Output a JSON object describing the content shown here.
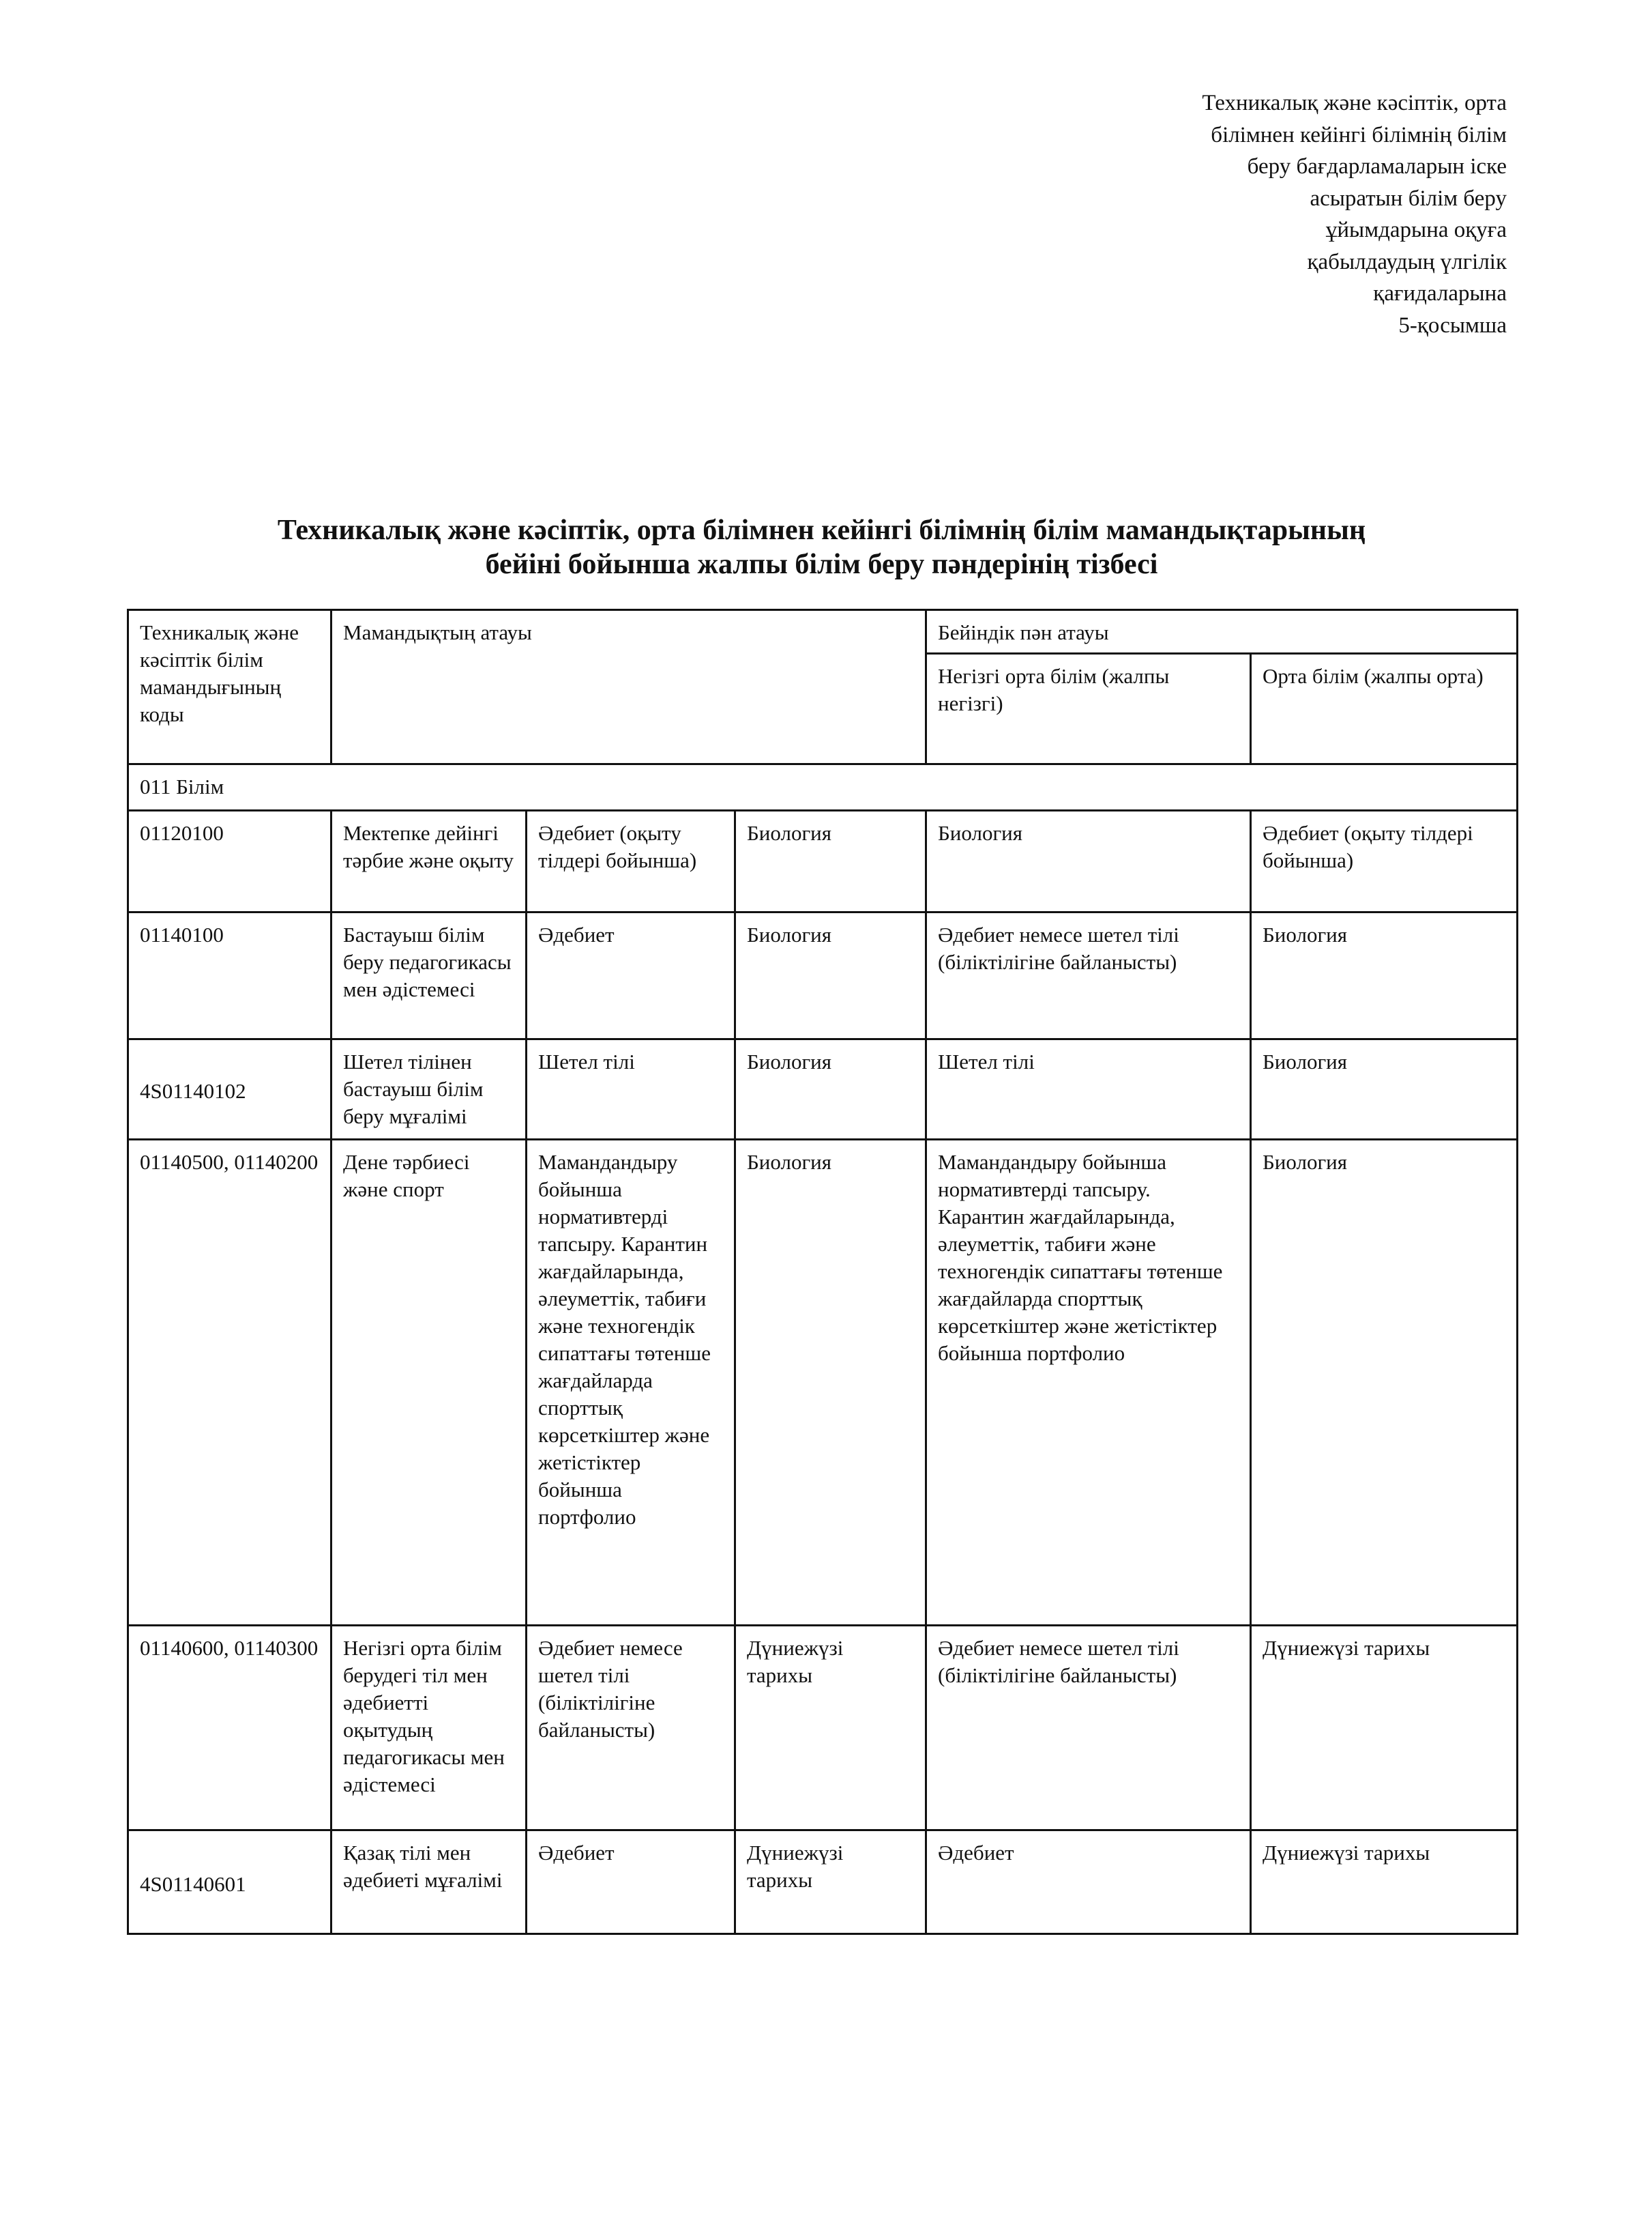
{
  "annex_lines": [
    "Техникалық және кәсіптік, орта",
    "білімнен кейінгі білімнің білім",
    "беру бағдарламаларын іске",
    "асыратын білім беру",
    "ұйымдарына оқуға",
    "қабылдаудың үлгілік",
    "қағидаларына",
    "5-қосымша"
  ],
  "title_lines": [
    "Техникалық және кәсіптік, орта білімнен кейінгі білімнің білім мамандықтарының",
    "бейіні бойынша жалпы білім беру пәндерінің тізбесі"
  ],
  "table": {
    "headers": {
      "code": "Техникалық және кәсіптік білім мамандығының коды",
      "name": "Мамандықтың атауы",
      "profile": "Бейіндік пән атауы",
      "basic": "Негізгі орта білім (жалпы негізгі)",
      "secondary": "Орта білім (жалпы орта)"
    },
    "section": "011 Білім",
    "rows": [
      [
        "01120100",
        "Мектепке дейінгі тәрбие және оқыту",
        "Әдебиет (оқыту тілдері бойынша)",
        "Биология",
        "Биология",
        "Әдебиет (оқыту тілдері бойынша)"
      ],
      [
        "01140100",
        "Бастауыш білім беру педагогикасы мен әдістемесі",
        "Әдебиет",
        "Биология",
        "Әдебиет немесе шетел тілі (біліктілігіне байланысты)",
        "Биология"
      ],
      [
        "4S01140102",
        "Шетел тілінен бастауыш білім беру мұғалімі",
        "Шетел тілі",
        "Биология",
        "Шетел тілі",
        "Биология"
      ],
      [
        "01140500, 01140200",
        "Дене тәрбиесі және спорт",
        "Мамандандыру бойынша нормативтерді тапсыру. Карантин жағдайларында, әлеуметтік, табиғи және техногендік сипаттағы төтенше жағдайларда спорттық көрсеткіштер және жетістіктер бойынша портфолио",
        "Биология",
        "Мамандандыру бойынша нормативтерді тапсыру. Карантин жағдайларында, әлеуметтік, табиғи және техногендік сипаттағы төтенше жағдайларда спорттық көрсеткіштер және жетістіктер бойынша портфолио",
        "Биология"
      ],
      [
        "01140600, 01140300",
        "Негізгі орта білім берудегі тіл мен әдебиетті оқытудың педагогикасы мен әдістемесі",
        "Әдебиет немесе шетел тілі (біліктілігіне байланысты)",
        "Дүниежүзі тарихы",
        "Әдебиет немесе шетел тілі (біліктілігіне байланысты)",
        "Дүниежүзі тарихы"
      ],
      [
        "4S01140601",
        "Қазақ тілі мен әдебиеті мұғалімі",
        "Әдебиет",
        "Дүниежүзі тарихы",
        "Әдебиет",
        "Дүниежүзі тарихы"
      ]
    ]
  }
}
